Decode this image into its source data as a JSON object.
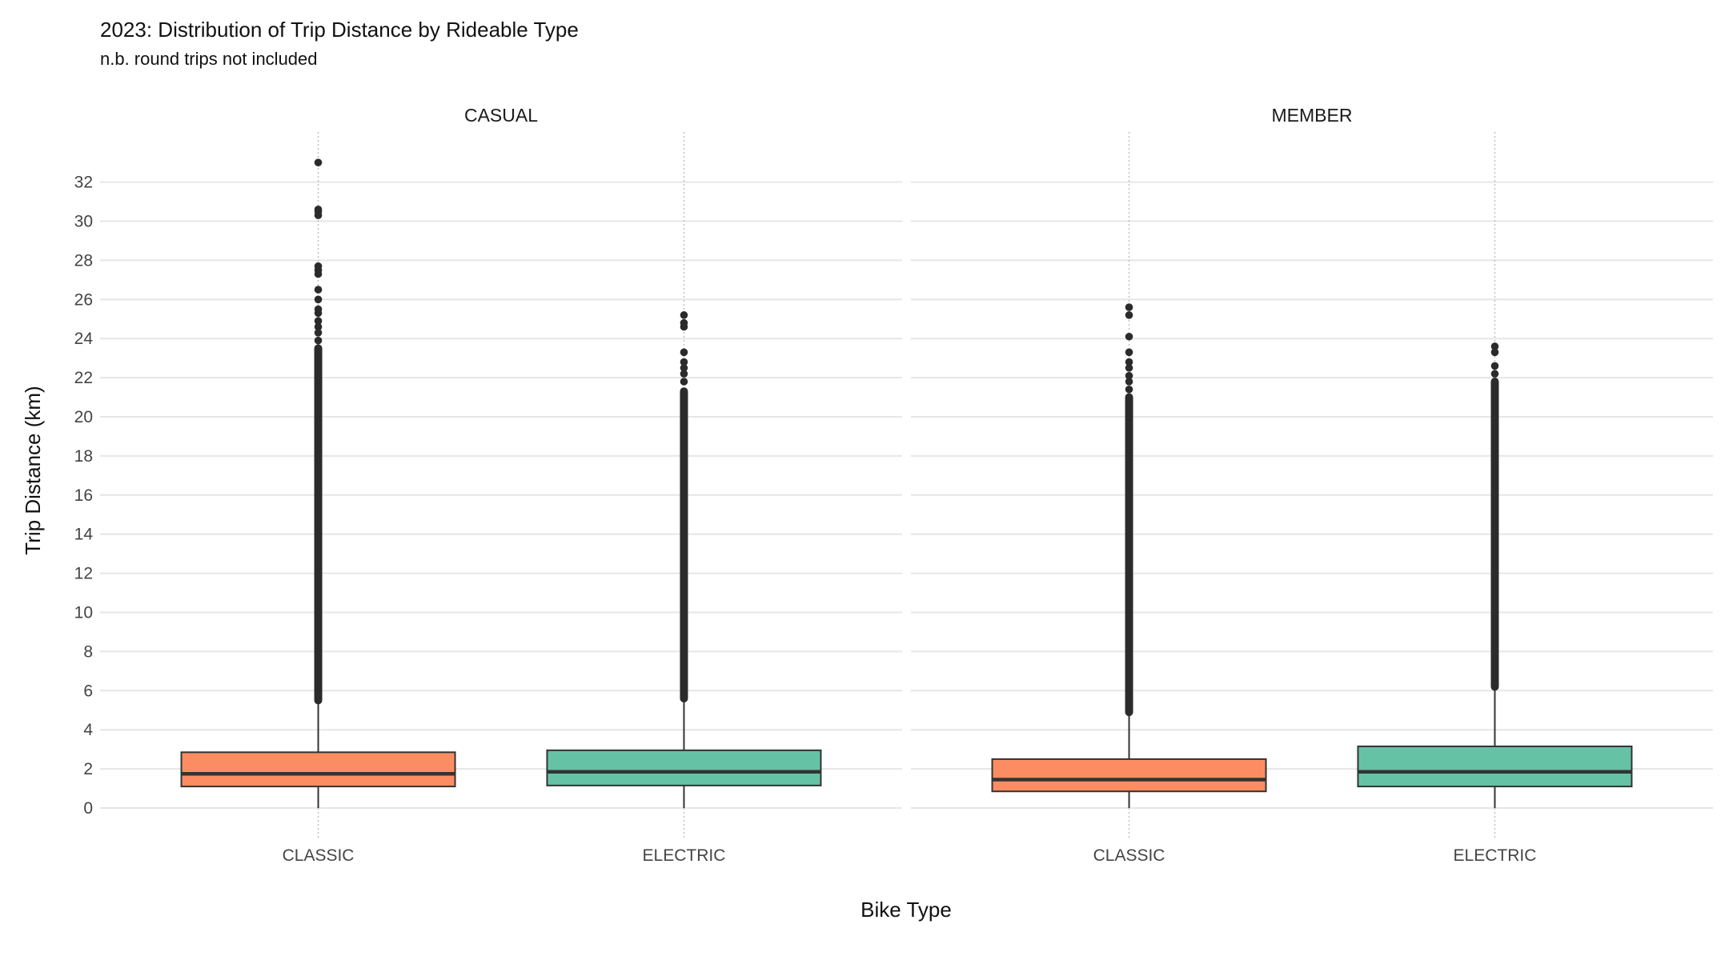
{
  "chart_data": {
    "type": "boxplot",
    "title": "2023: Distribution of Trip Distance by Rideable Type",
    "subtitle": "n.b. round trips not included",
    "xlabel": "Bike Type",
    "ylabel": "Trip Distance (km)",
    "ylim": [
      -0.8,
      34.5
    ],
    "yticks": [
      0,
      2,
      4,
      6,
      8,
      10,
      12,
      14,
      16,
      18,
      20,
      22,
      24,
      26,
      28,
      30,
      32
    ],
    "categories": [
      "CLASSIC",
      "ELECTRIC"
    ],
    "fill_colors": {
      "CLASSIC": "#FC8D62",
      "ELECTRIC": "#66C2A5"
    },
    "grid": true,
    "legend": "none",
    "facets": [
      {
        "label": "CASUAL",
        "boxes": [
          {
            "category": "CLASSIC",
            "min": 0,
            "q1": 1.1,
            "median": 1.75,
            "q3": 2.85,
            "whisker_high": 5.5,
            "outlier_dense_to": 23.5,
            "outliers": [
              23.9,
              24.3,
              24.6,
              24.9,
              25.3,
              25.5,
              26.0,
              26.5,
              27.3,
              27.5,
              27.7,
              30.3,
              30.5,
              30.6,
              33.0
            ]
          },
          {
            "category": "ELECTRIC",
            "min": 0,
            "q1": 1.15,
            "median": 1.85,
            "q3": 2.95,
            "whisker_high": 5.6,
            "outlier_dense_to": 21.3,
            "outliers": [
              21.8,
              22.2,
              22.5,
              22.8,
              23.3,
              24.6,
              24.8,
              25.2
            ]
          }
        ]
      },
      {
        "label": "MEMBER",
        "boxes": [
          {
            "category": "CLASSIC",
            "min": 0,
            "q1": 0.85,
            "median": 1.45,
            "q3": 2.5,
            "whisker_high": 4.9,
            "outlier_dense_to": 21.0,
            "outliers": [
              21.4,
              21.8,
              22.1,
              22.5,
              22.8,
              23.3,
              24.1,
              25.2,
              25.6
            ]
          },
          {
            "category": "ELECTRIC",
            "min": 0,
            "q1": 1.1,
            "median": 1.85,
            "q3": 3.15,
            "whisker_high": 6.2,
            "outlier_dense_to": 21.8,
            "outliers": [
              22.2,
              22.6,
              23.3,
              23.6
            ]
          }
        ]
      }
    ]
  }
}
